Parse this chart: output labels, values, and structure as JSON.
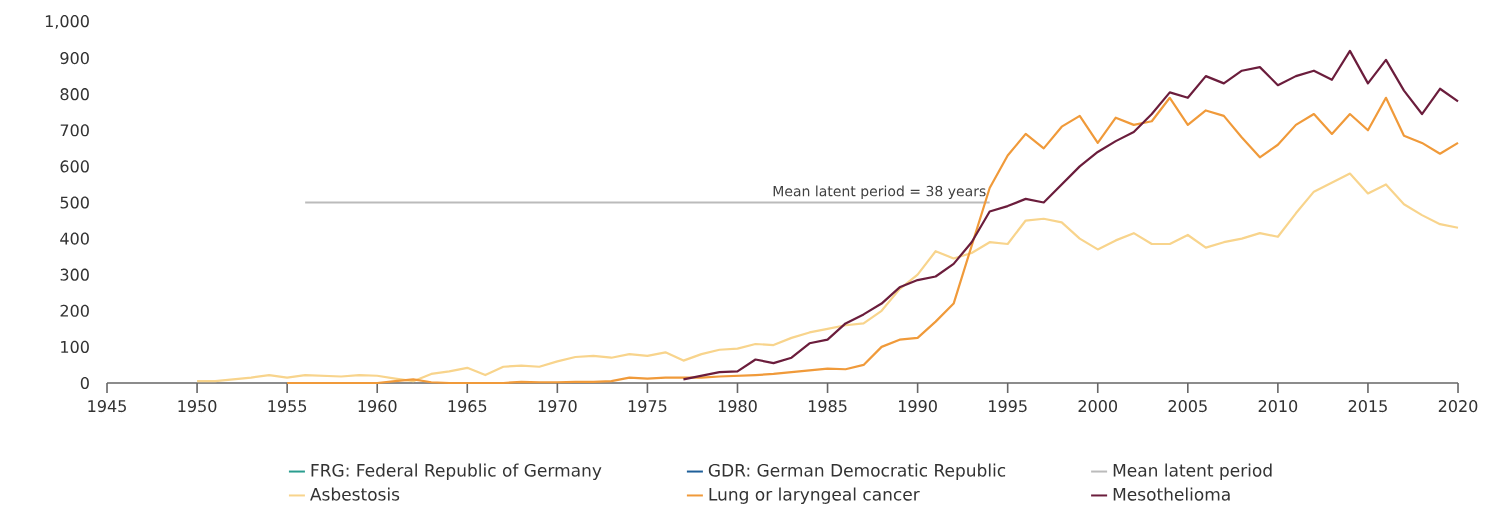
{
  "chart_data": {
    "type": "line",
    "xlim": [
      1945,
      2020
    ],
    "xticks": [
      1945,
      1950,
      1955,
      1960,
      1965,
      1970,
      1975,
      1980,
      1985,
      1990,
      1995,
      2000,
      2005,
      2010,
      2015,
      2020
    ],
    "ylim": [
      0,
      1000
    ],
    "yticks": [
      0,
      100,
      200,
      300,
      400,
      500,
      600,
      700,
      800,
      900,
      {
        "value": 1000,
        "label": "1,000"
      }
    ],
    "grid": false,
    "legend": "bottom",
    "line_style": "solid",
    "marker": "none",
    "annotations": [
      {
        "text": "Mean latent period = 38 years",
        "x": 1994,
        "y": 500
      }
    ],
    "series": [
      {
        "name": "FRG: Federal Republic of Germany",
        "color": "#2a9d8f"
      },
      {
        "name": "GDR: German Democratic Republic",
        "color": "#1f5f99"
      },
      {
        "name": "Mean latent period",
        "color": "#bbbbbb",
        "x": [
          1956,
          1994
        ],
        "values": [
          500,
          500
        ]
      },
      {
        "name": "Asbestosis",
        "color": "#f8d48c",
        "x": [
          1950,
          1951,
          1952,
          1953,
          1954,
          1955,
          1956,
          1957,
          1958,
          1959,
          1960,
          1961,
          1962,
          1963,
          1964,
          1965,
          1966,
          1967,
          1968,
          1969,
          1970,
          1971,
          1972,
          1973,
          1974,
          1975,
          1976,
          1977,
          1978,
          1979,
          1980,
          1981,
          1982,
          1983,
          1984,
          1985,
          1986,
          1987,
          1988,
          1989,
          1990,
          1991,
          1992,
          1993,
          1994,
          1995,
          1996,
          1997,
          1998,
          1999,
          2000,
          2001,
          2002,
          2003,
          2004,
          2005,
          2006,
          2007,
          2008,
          2009,
          2010,
          2011,
          2012,
          2013,
          2014,
          2015,
          2016,
          2017,
          2018,
          2019,
          2020
        ],
        "values": [
          5,
          5,
          10,
          15,
          22,
          15,
          22,
          20,
          18,
          22,
          20,
          12,
          5,
          25,
          32,
          42,
          22,
          45,
          48,
          45,
          60,
          72,
          75,
          70,
          80,
          75,
          85,
          62,
          80,
          92,
          95,
          108,
          105,
          125,
          140,
          150,
          160,
          165,
          200,
          260,
          300,
          365,
          345,
          360,
          390,
          385,
          450,
          455,
          445,
          400,
          370,
          395,
          415,
          385,
          385,
          410,
          375,
          390,
          400,
          415,
          405,
          470,
          530,
          555,
          580,
          525,
          550,
          495,
          465,
          440,
          430
        ]
      },
      {
        "name": "Lung or laryngeal cancer",
        "color": "#f09a3a",
        "x": [
          1955,
          1956,
          1957,
          1958,
          1959,
          1960,
          1961,
          1962,
          1963,
          1964,
          1965,
          1966,
          1967,
          1968,
          1969,
          1970,
          1971,
          1972,
          1973,
          1974,
          1975,
          1976,
          1977,
          1978,
          1979,
          1980,
          1981,
          1982,
          1983,
          1984,
          1985,
          1986,
          1987,
          1988,
          1989,
          1990,
          1991,
          1992,
          1993,
          1994,
          1995,
          1996,
          1997,
          1998,
          1999,
          2000,
          2001,
          2002,
          2003,
          2004,
          2005,
          2006,
          2007,
          2008,
          2009,
          2010,
          2011,
          2012,
          2013,
          2014,
          2015,
          2016,
          2017,
          2018,
          2019,
          2020
        ],
        "values": [
          0,
          0,
          0,
          0,
          0,
          0,
          5,
          10,
          2,
          0,
          0,
          0,
          0,
          3,
          2,
          2,
          3,
          3,
          5,
          15,
          12,
          15,
          15,
          15,
          18,
          20,
          22,
          25,
          30,
          35,
          40,
          38,
          50,
          100,
          120,
          125,
          170,
          220,
          380,
          540,
          630,
          690,
          650,
          710,
          740,
          665,
          735,
          715,
          725,
          790,
          715,
          755,
          740,
          680,
          625,
          660,
          715,
          745,
          690,
          745,
          700,
          790,
          685,
          665,
          635,
          665
        ]
      },
      {
        "name": "Mesothelioma",
        "color": "#6b1d3c",
        "x": [
          1977,
          1978,
          1979,
          1980,
          1981,
          1982,
          1983,
          1984,
          1985,
          1986,
          1987,
          1988,
          1989,
          1990,
          1991,
          1992,
          1993,
          1994,
          1995,
          1996,
          1997,
          1998,
          1999,
          2000,
          2001,
          2002,
          2003,
          2004,
          2005,
          2006,
          2007,
          2008,
          2009,
          2010,
          2011,
          2012,
          2013,
          2014,
          2015,
          2016,
          2017,
          2018,
          2019,
          2020
        ],
        "values": [
          10,
          20,
          30,
          32,
          65,
          55,
          70,
          110,
          120,
          165,
          190,
          220,
          265,
          285,
          295,
          330,
          390,
          475,
          490,
          510,
          500,
          550,
          600,
          640,
          670,
          695,
          745,
          805,
          790,
          850,
          830,
          865,
          875,
          825,
          850,
          865,
          840,
          920,
          830,
          895,
          810,
          745,
          815,
          780
        ]
      }
    ]
  }
}
